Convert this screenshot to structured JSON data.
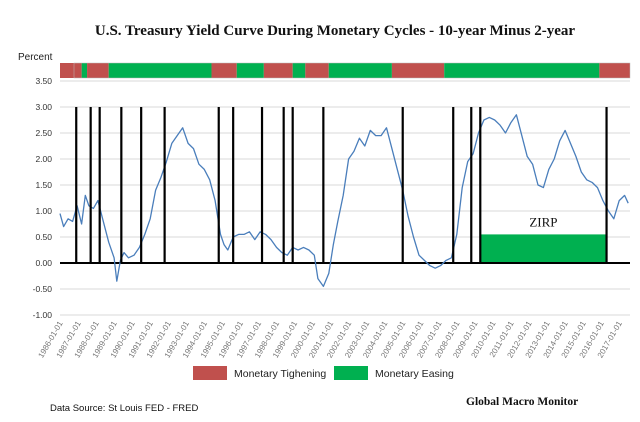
{
  "chart_data": {
    "type": "line",
    "title": "U.S. Treasury Yield Curve During Monetary Cycles - 10-year Minus 2-year",
    "ylabel": "Percent",
    "ylim": [
      -1.0,
      3.5
    ],
    "yticks": [
      "-1.00",
      "-0.50",
      "0.00",
      "0.50",
      "1.00",
      "1.50",
      "2.00",
      "2.50",
      "3.00",
      "3.50"
    ],
    "xlim": [
      1986.0,
      2017.6
    ],
    "x_ticks": [
      "1986-01-01",
      "1987-01-01",
      "1988-01-01",
      "1989-01-01",
      "1990-01-01",
      "1991-01-01",
      "1992-01-01",
      "1993-01-01",
      "1994-01-01",
      "1995-01-01",
      "1996-01-01",
      "1997-01-01",
      "1998-01-01",
      "1999-01-01",
      "2000-01-01",
      "2001-01-01",
      "2002-01-01",
      "2003-01-01",
      "2004-01-01",
      "2005-01-01",
      "2006-01-01",
      "2007-01-01",
      "2008-01-01",
      "2009-01-01",
      "2010-01-01",
      "2011-01-01",
      "2012-01-01",
      "2013-01-01",
      "2014-01-01",
      "2015-01-01",
      "2016-01-01",
      "2017-01-01"
    ],
    "grid": true,
    "series": [
      {
        "color": "#4a7ebb",
        "x": [
          1986.0,
          1986.2,
          1986.45,
          1986.7,
          1986.95,
          1987.2,
          1987.4,
          1987.6,
          1987.85,
          1988.1,
          1988.4,
          1988.7,
          1989.0,
          1989.15,
          1989.35,
          1989.55,
          1989.8,
          1990.1,
          1990.4,
          1990.7,
          1991.0,
          1991.3,
          1991.6,
          1991.9,
          1992.2,
          1992.5,
          1992.8,
          1993.1,
          1993.4,
          1993.7,
          1994.0,
          1994.3,
          1994.6,
          1994.9,
          1995.1,
          1995.3,
          1995.6,
          1995.9,
          1996.2,
          1996.5,
          1996.8,
          1997.1,
          1997.4,
          1997.7,
          1998.0,
          1998.3,
          1998.6,
          1998.9,
          1999.2,
          1999.5,
          1999.8,
          2000.1,
          2000.3,
          2000.6,
          2000.9,
          2001.15,
          2001.4,
          2001.7,
          2002.0,
          2002.3,
          2002.6,
          2002.9,
          2003.2,
          2003.5,
          2003.8,
          2004.1,
          2004.4,
          2004.7,
          2005.0,
          2005.3,
          2005.6,
          2005.9,
          2006.2,
          2006.5,
          2006.8,
          2007.1,
          2007.4,
          2007.7,
          2008.0,
          2008.3,
          2008.6,
          2008.9,
          2009.2,
          2009.5,
          2009.8,
          2010.1,
          2010.4,
          2010.7,
          2011.0,
          2011.3,
          2011.6,
          2011.9,
          2012.2,
          2012.5,
          2012.8,
          2013.1,
          2013.4,
          2013.7,
          2014.0,
          2014.3,
          2014.6,
          2014.9,
          2015.2,
          2015.5,
          2015.8,
          2016.1,
          2016.4,
          2016.7,
          2017.0,
          2017.3,
          2017.5
        ],
        "values": [
          0.95,
          0.7,
          0.85,
          0.8,
          1.1,
          0.75,
          1.3,
          1.1,
          1.05,
          1.2,
          0.8,
          0.4,
          0.1,
          -0.35,
          0.05,
          0.2,
          0.1,
          0.15,
          0.3,
          0.55,
          0.85,
          1.4,
          1.65,
          1.95,
          2.3,
          2.45,
          2.6,
          2.3,
          2.2,
          1.9,
          1.8,
          1.6,
          1.2,
          0.55,
          0.35,
          0.25,
          0.5,
          0.55,
          0.55,
          0.6,
          0.45,
          0.6,
          0.55,
          0.45,
          0.3,
          0.2,
          0.15,
          0.3,
          0.25,
          0.3,
          0.25,
          0.15,
          -0.3,
          -0.45,
          -0.2,
          0.35,
          0.8,
          1.3,
          2.0,
          2.15,
          2.4,
          2.25,
          2.55,
          2.45,
          2.45,
          2.6,
          2.2,
          1.8,
          1.4,
          0.9,
          0.5,
          0.15,
          0.05,
          -0.05,
          -0.1,
          -0.05,
          0.05,
          0.1,
          0.55,
          1.45,
          1.95,
          2.1,
          2.5,
          2.75,
          2.8,
          2.75,
          2.65,
          2.5,
          2.7,
          2.85,
          2.45,
          2.05,
          1.9,
          1.5,
          1.45,
          1.8,
          2.0,
          2.35,
          2.55,
          2.3,
          2.05,
          1.75,
          1.6,
          1.55,
          1.45,
          1.2,
          1.0,
          0.85,
          1.2,
          1.3,
          1.15
        ]
      }
    ],
    "cycle_lines": [
      1986.9,
      1987.7,
      1988.2,
      1989.4,
      1990.5,
      1991.8,
      1994.8,
      1995.6,
      1997.2,
      1998.4,
      1998.9,
      2000.6,
      2005.0,
      2007.8,
      2008.8,
      2009.3,
      2016.3
    ],
    "regime_bar": [
      {
        "start": 1986.0,
        "end": 1987.2,
        "type": "tightening"
      },
      {
        "start": 1987.2,
        "end": 1987.5,
        "type": "easing"
      },
      {
        "start": 1987.5,
        "end": 1988.7,
        "type": "tightening"
      },
      {
        "start": 1988.7,
        "end": 1994.4,
        "type": "easing"
      },
      {
        "start": 1994.4,
        "end": 1995.8,
        "type": "tightening"
      },
      {
        "start": 1995.8,
        "end": 1997.3,
        "type": "easing"
      },
      {
        "start": 1997.3,
        "end": 1998.9,
        "type": "tightening"
      },
      {
        "start": 1998.9,
        "end": 1999.6,
        "type": "easing"
      },
      {
        "start": 1999.6,
        "end": 2000.9,
        "type": "tightening"
      },
      {
        "start": 2000.9,
        "end": 2004.4,
        "type": "easing"
      },
      {
        "start": 2004.4,
        "end": 2007.3,
        "type": "tightening"
      },
      {
        "start": 2007.3,
        "end": 2015.9,
        "type": "easing"
      },
      {
        "start": 2015.9,
        "end": 2017.6,
        "type": "tightening"
      }
    ],
    "zirp": {
      "label": "ZIRP",
      "start": 2009.3,
      "end": 2016.3,
      "top": 0.55,
      "bottom": 0.0
    },
    "legend": [
      {
        "label": "Monetary Tighening",
        "color": "#c0504d"
      },
      {
        "label": "Monetary Easing",
        "color": "#00b050"
      }
    ],
    "colors": {
      "tightening": "#c0504d",
      "easing": "#00b050",
      "series": "#4a7ebb"
    }
  },
  "source_text": "Data Source: St Louis FED - FRED",
  "brand_text": "Global Macro Monitor"
}
